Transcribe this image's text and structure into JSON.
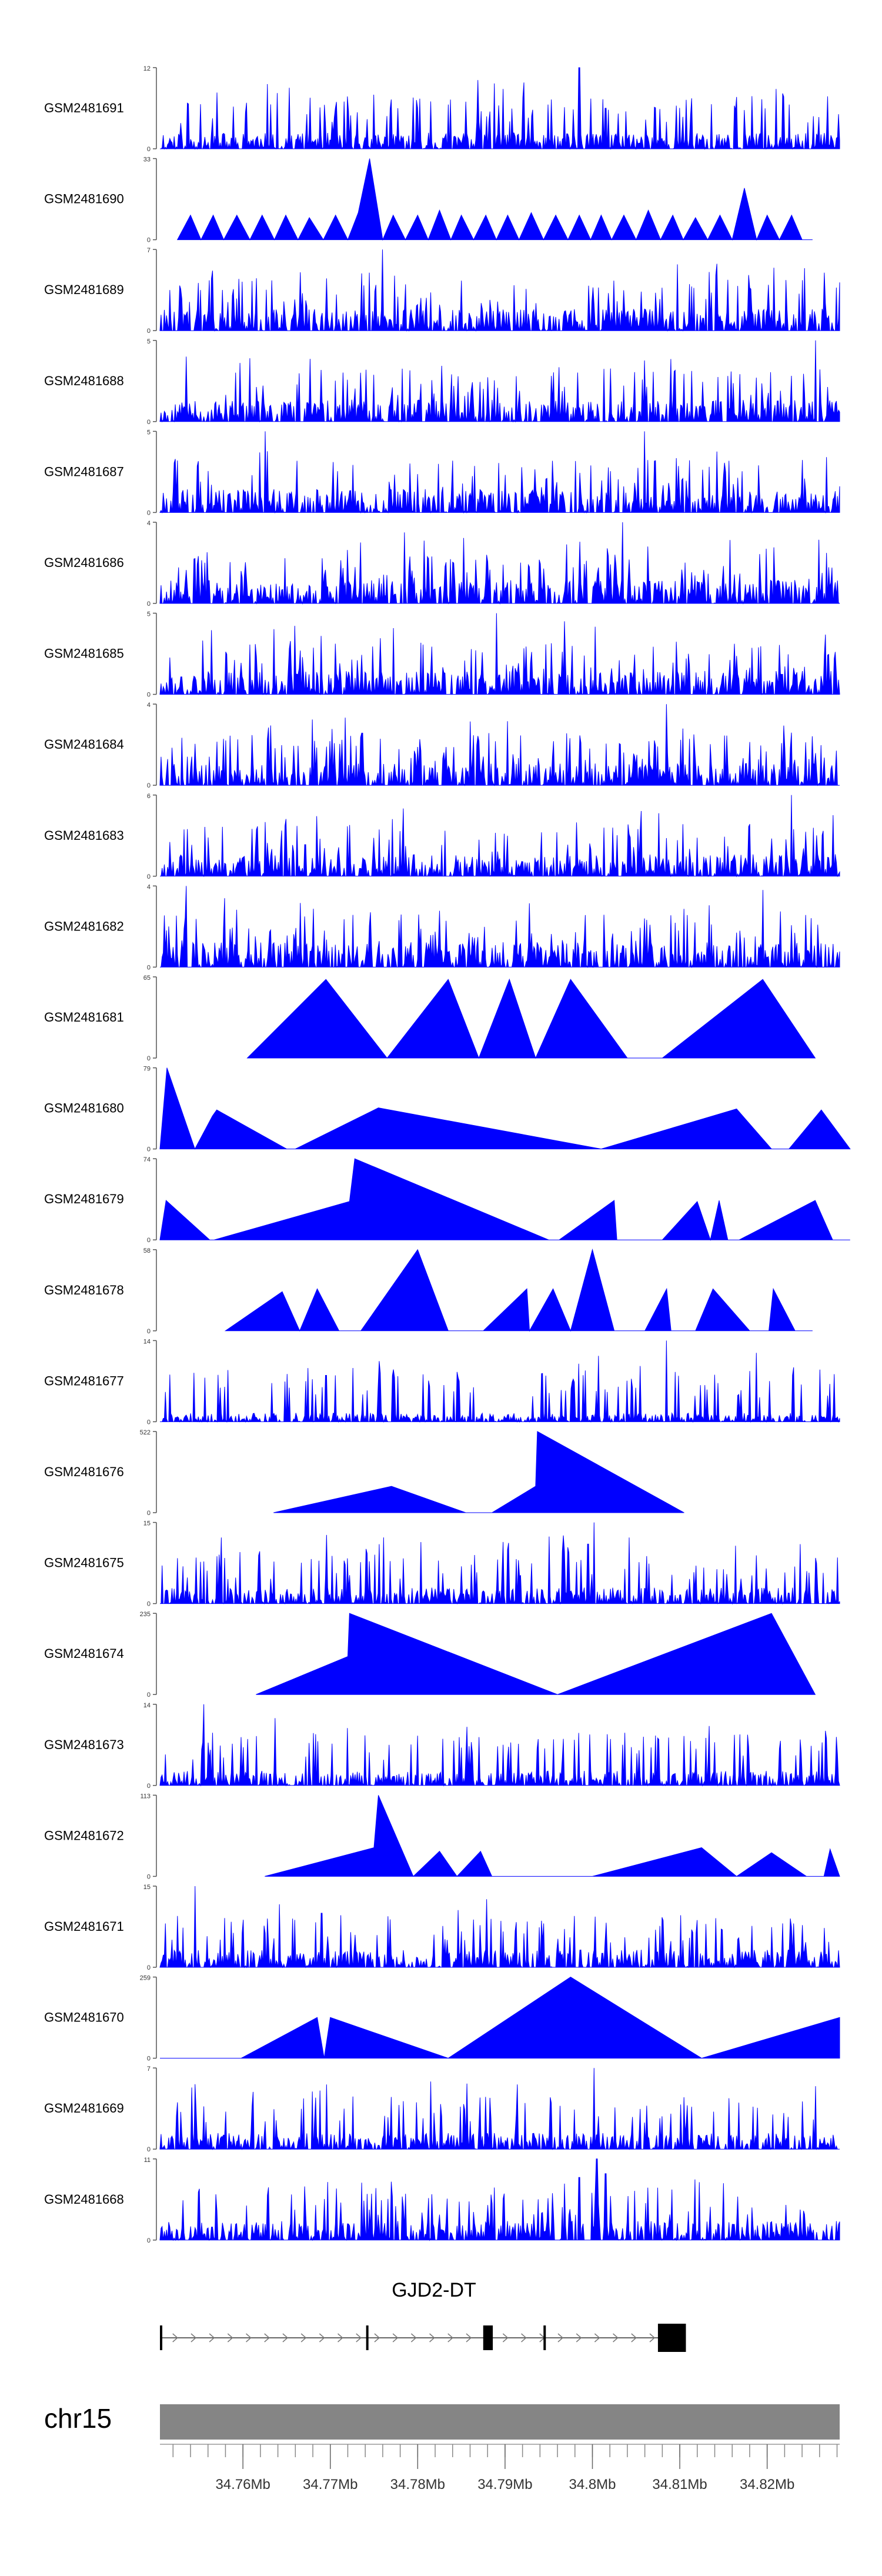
{
  "chart_data": {
    "type": "area",
    "title": "",
    "xlabel": "",
    "chromosome": "chr15",
    "x_range": [
      34.7505,
      34.8283
    ],
    "x_ticks": [
      {
        "value": 34.76,
        "label": "34.76Mb"
      },
      {
        "value": 34.77,
        "label": "34.77Mb"
      },
      {
        "value": 34.78,
        "label": "34.78Mb"
      },
      {
        "value": 34.79,
        "label": "34.79Mb"
      },
      {
        "value": 34.8,
        "label": "34.8Mb"
      },
      {
        "value": 34.81,
        "label": "34.81Mb"
      },
      {
        "value": 34.82,
        "label": "34.82Mb"
      }
    ],
    "fill_color": "#0000ff",
    "tracks": [
      {
        "name": "GSM2481691",
        "ymax": 12,
        "ymax_label": "12",
        "ymin_label": "0",
        "kind": "dense",
        "seed": 11,
        "base": 0.22,
        "peaks": [
          [
            34.7815,
            7
          ],
          [
            34.7565,
            4.5
          ],
          [
            34.7985,
            12
          ],
          [
            34.8015,
            6
          ]
        ]
      },
      {
        "name": "GSM2481690",
        "ymax": 33,
        "ymax_label": "33",
        "ymin_label": "0",
        "kind": "spikes",
        "seed": 12,
        "base": 0.3,
        "x": [
          34.7525,
          34.754,
          34.7552,
          34.7566,
          34.7578,
          34.7593,
          34.7608,
          34.7622,
          34.7636,
          34.7649,
          34.7663,
          34.7676,
          34.7692,
          34.7706,
          34.772,
          34.7732,
          34.7745,
          34.776,
          34.7772,
          34.7786,
          34.78,
          34.7812,
          34.7825,
          34.7838,
          34.785,
          34.7864,
          34.7878,
          34.789,
          34.7903,
          34.7916,
          34.793,
          34.7944,
          34.7958,
          34.7972,
          34.7985,
          34.7998,
          34.801,
          34.8022,
          34.8036,
          34.805,
          34.8064,
          34.8078,
          34.8092,
          34.8104,
          34.8118,
          34.8132,
          34.8146,
          34.816,
          34.8174,
          34.8188,
          34.82,
          34.8214,
          34.8228,
          34.824,
          34.8252
        ],
        "y": [
          0,
          10,
          0,
          10,
          0,
          10,
          0,
          10,
          0,
          10,
          0,
          9,
          0,
          10,
          0,
          11,
          33,
          0,
          10,
          0,
          10,
          0,
          12,
          0,
          10,
          0,
          10,
          0,
          10,
          0,
          11,
          0,
          10,
          0,
          10,
          0,
          10,
          0,
          10,
          0,
          12,
          0,
          10,
          0,
          9,
          0,
          10,
          0,
          21,
          0,
          10,
          0,
          10,
          0,
          0
        ]
      },
      {
        "name": "GSM2481689",
        "ymax": 7,
        "ymax_label": "7",
        "ymin_label": "0",
        "kind": "dense",
        "seed": 13,
        "base": 0.3,
        "peaks": [
          [
            34.776,
            7
          ],
          [
            34.8265,
            5
          ],
          [
            34.7745,
            5
          ]
        ]
      },
      {
        "name": "GSM2481688",
        "ymax": 5,
        "ymax_label": "5",
        "ymin_label": "0",
        "kind": "dense",
        "seed": 14,
        "base": 0.3,
        "peaks": [
          [
            34.8255,
            5
          ],
          [
            34.7535,
            4
          ]
        ]
      },
      {
        "name": "GSM2481687",
        "ymax": 5,
        "ymax_label": "5",
        "ymin_label": "0",
        "kind": "dense",
        "seed": 15,
        "base": 0.32,
        "peaks": [
          [
            34.7625,
            5
          ],
          [
            34.806,
            5
          ]
        ]
      },
      {
        "name": "GSM2481686",
        "ymax": 4,
        "ymax_label": "4",
        "ymin_label": "0",
        "kind": "dense",
        "seed": 16,
        "base": 0.32,
        "peaks": [
          [
            34.8035,
            4
          ],
          [
            34.7785,
            3.5
          ]
        ]
      },
      {
        "name": "GSM2481685",
        "ymax": 5,
        "ymax_label": "5",
        "ymin_label": "0",
        "kind": "dense",
        "seed": 17,
        "base": 0.32,
        "peaks": [
          [
            34.789,
            5
          ],
          [
            34.7968,
            4.5
          ]
        ]
      },
      {
        "name": "GSM2481684",
        "ymax": 4,
        "ymax_label": "4",
        "ymin_label": "0",
        "kind": "dense",
        "seed": 18,
        "base": 0.3,
        "peaks": [
          [
            34.8085,
            4
          ]
        ]
      },
      {
        "name": "GSM2481683",
        "ymax": 6,
        "ymax_label": "6",
        "ymin_label": "0",
        "kind": "dense",
        "seed": 19,
        "base": 0.3,
        "peaks": [
          [
            34.8228,
            6
          ],
          [
            34.7625,
            4
          ]
        ]
      },
      {
        "name": "GSM2481682",
        "ymax": 4,
        "ymax_label": "4",
        "ymin_label": "0",
        "kind": "dense",
        "seed": 20,
        "base": 0.34,
        "peaks": [
          [
            34.7535,
            4
          ],
          [
            34.8195,
            3.8
          ]
        ]
      },
      {
        "name": "GSM2481681",
        "ymax": 65,
        "ymax_label": "65",
        "ymin_label": "0",
        "kind": "poly",
        "x": [
          34.7605,
          34.7695,
          34.7765,
          34.7835,
          34.787,
          34.7905,
          34.7935,
          34.7975,
          34.804,
          34.808,
          34.8195,
          34.8255
        ],
        "y": [
          0,
          63,
          0,
          63,
          0,
          63,
          0,
          63,
          0,
          0,
          63,
          0
        ]
      },
      {
        "name": "GSM2481680",
        "ymax": 79,
        "ymax_label": "79",
        "ymin_label": "0",
        "kind": "poly",
        "x": [
          34.7505,
          34.7513,
          34.7545,
          34.7565,
          34.757,
          34.765,
          34.766,
          34.7755,
          34.801,
          34.8165,
          34.8205,
          34.8225,
          34.8262,
          34.8295
        ],
        "y": [
          0,
          79,
          0,
          32,
          38,
          0,
          0,
          40,
          0,
          39,
          0,
          0,
          38,
          0
        ]
      },
      {
        "name": "GSM2481679",
        "ymax": 74,
        "ymax_label": "74",
        "ymin_label": "0",
        "kind": "poly",
        "x": [
          34.7505,
          34.7512,
          34.7562,
          34.7567,
          34.7722,
          34.7728,
          34.795,
          34.7962,
          34.8025,
          34.8028,
          34.808,
          34.812,
          34.8135,
          34.8145,
          34.8155,
          34.8168,
          34.8255,
          34.8275,
          34.8295
        ],
        "y": [
          0,
          36,
          0,
          0,
          35,
          74,
          0,
          0,
          36,
          0,
          0,
          35,
          0,
          36,
          0,
          0,
          36,
          0,
          0
        ]
      },
      {
        "name": "GSM2481678",
        "ymax": 58,
        "ymax_label": "58",
        "ymin_label": "0",
        "kind": "poly",
        "x": [
          34.758,
          34.7645,
          34.7665,
          34.7685,
          34.771,
          34.7735,
          34.78,
          34.7835,
          34.7875,
          34.7925,
          34.7928,
          34.7955,
          34.7975,
          34.8,
          34.8025,
          34.803,
          34.806,
          34.8085,
          34.809,
          34.8118,
          34.8138,
          34.818,
          34.8202,
          34.8207,
          34.8232,
          34.8252
        ],
        "y": [
          0,
          28,
          0,
          30,
          0,
          0,
          58,
          0,
          0,
          30,
          0,
          30,
          0,
          58,
          0,
          0,
          0,
          30,
          0,
          0,
          30,
          0,
          0,
          30,
          0,
          0
        ]
      },
      {
        "name": "GSM2481677",
        "ymax": 14,
        "ymax_label": "14",
        "ymin_label": "0",
        "kind": "dense",
        "seed": 21,
        "base": 0.12,
        "peaks": [
          [
            34.8085,
            14
          ],
          [
            34.826,
            9
          ],
          [
            34.7695,
            8
          ]
        ]
      },
      {
        "name": "GSM2481676",
        "ymax": 522,
        "ymax_label": "522",
        "ymin_label": "0",
        "kind": "poly",
        "x": [
          34.7635,
          34.777,
          34.7855,
          34.7885,
          34.7935,
          34.7937,
          34.8105
        ],
        "y": [
          0,
          170,
          0,
          0,
          170,
          522,
          0
        ]
      },
      {
        "name": "GSM2481675",
        "ymax": 15,
        "ymax_label": "15",
        "ymin_label": "0",
        "kind": "dense",
        "seed": 22,
        "base": 0.22,
        "peaks": [
          [
            34.8002,
            15
          ],
          [
            34.7995,
            11
          ],
          [
            34.8245,
            6
          ]
        ]
      },
      {
        "name": "GSM2481674",
        "ymax": 235,
        "ymax_label": "235",
        "ymin_label": "0",
        "kind": "poly",
        "x": [
          34.7615,
          34.772,
          34.7722,
          34.796,
          34.8205,
          34.8255
        ],
        "y": [
          0,
          110,
          235,
          0,
          235,
          0
        ]
      },
      {
        "name": "GSM2481673",
        "ymax": 14,
        "ymax_label": "14",
        "ymin_label": "0",
        "kind": "dense",
        "seed": 23,
        "base": 0.2,
        "peaks": [
          [
            34.7555,
            14
          ],
          [
            34.7605,
            8
          ]
        ]
      },
      {
        "name": "GSM2481672",
        "ymax": 113,
        "ymax_label": "113",
        "ymin_label": "0",
        "kind": "poly",
        "x": [
          34.7625,
          34.775,
          34.7755,
          34.7795,
          34.7825,
          34.7845,
          34.7872,
          34.7885,
          34.7915,
          34.8,
          34.8125,
          34.8165,
          34.8205,
          34.8245,
          34.8265,
          34.8272,
          34.8283
        ],
        "y": [
          0,
          40,
          113,
          0,
          35,
          0,
          35,
          0,
          0,
          0,
          40,
          0,
          33,
          0,
          0,
          38,
          0
        ]
      },
      {
        "name": "GSM2481671",
        "ymax": 15,
        "ymax_label": "15",
        "ymin_label": "0",
        "kind": "dense",
        "seed": 24,
        "base": 0.24,
        "peaks": [
          [
            34.7545,
            15
          ],
          [
            34.769,
            10
          ]
        ]
      },
      {
        "name": "GSM2481670",
        "ymax": 259,
        "ymax_label": "259",
        "ymin_label": "0",
        "kind": "poly",
        "x": [
          34.7505,
          34.7598,
          34.7685,
          34.7693,
          34.77,
          34.7835,
          34.7975,
          34.8125,
          34.8283
        ],
        "y": [
          0,
          0,
          130,
          0,
          130,
          0,
          259,
          0,
          130
        ]
      },
      {
        "name": "GSM2481669",
        "ymax": 7,
        "ymax_label": "7",
        "ymin_label": "0",
        "kind": "dense",
        "seed": 25,
        "base": 0.22,
        "peaks": [
          [
            34.8002,
            7
          ],
          [
            34.777,
            4.5
          ]
        ]
      },
      {
        "name": "GSM2481668",
        "ymax": 11,
        "ymax_label": "11",
        "ymin_label": "0",
        "kind": "dense",
        "seed": 26,
        "base": 0.26,
        "peaks": [
          [
            34.8005,
            11
          ],
          [
            34.7985,
            8.5
          ],
          [
            34.8015,
            9
          ]
        ]
      }
    ],
    "gene": {
      "name": "GJD2-DT",
      "start": 34.7505,
      "end": 34.8107,
      "strand": "+",
      "exons": [
        {
          "start": 34.7505,
          "end": 34.75058
        },
        {
          "start": 34.7741,
          "end": 34.77425
        },
        {
          "start": 34.7875,
          "end": 34.7886
        },
        {
          "start": 34.7944,
          "end": 34.79455
        },
        {
          "start": 34.8075,
          "end": 34.8107
        }
      ]
    }
  }
}
